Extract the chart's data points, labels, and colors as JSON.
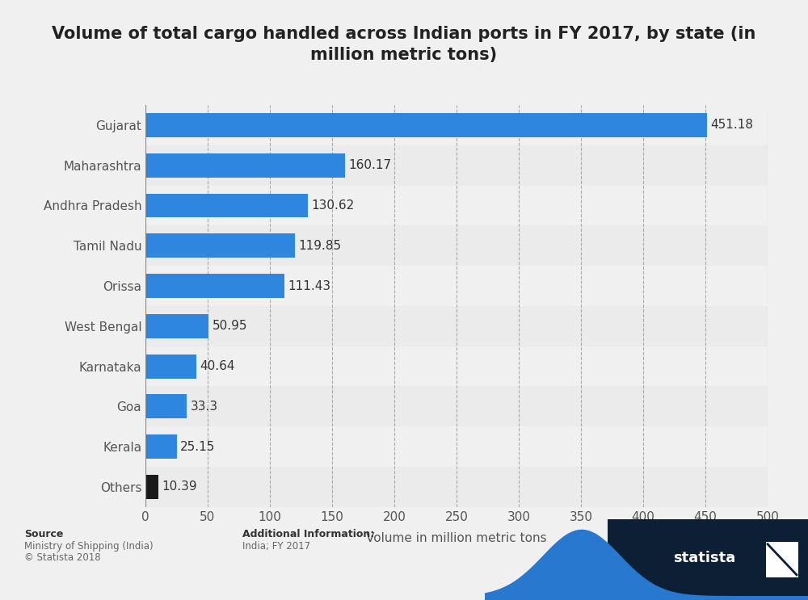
{
  "title": "Volume of total cargo handled across Indian ports in FY 2017, by state (in\nmillion metric tons)",
  "categories": [
    "Others",
    "Kerala",
    "Goa",
    "Karnataka",
    "West Bengal",
    "Orissa",
    "Tamil Nadu",
    "Andhra Pradesh",
    "Maharashtra",
    "Gujarat"
  ],
  "values": [
    10.39,
    25.15,
    33.3,
    40.64,
    50.95,
    111.43,
    119.85,
    130.62,
    160.17,
    451.18
  ],
  "bar_colors": [
    "#1a1a1a",
    "#2e86de",
    "#2e86de",
    "#2e86de",
    "#2e86de",
    "#2e86de",
    "#2e86de",
    "#2e86de",
    "#2e86de",
    "#2e86de"
  ],
  "xlabel": "Volume in million metric tons",
  "xlim": [
    0,
    500
  ],
  "xticks": [
    0,
    50,
    100,
    150,
    200,
    250,
    300,
    350,
    400,
    450,
    500
  ],
  "bg_color": "#f0f0f0",
  "plot_bg_color": "#f0f0f0",
  "title_fontsize": 15,
  "label_fontsize": 11,
  "tick_fontsize": 11,
  "value_fontsize": 11,
  "source_label": "Source",
  "source_line1": "Ministry of Shipping (India)",
  "source_line2": "© Statista 2018",
  "additional_label": "Additional Information:",
  "additional_line1": "India; FY 2017",
  "navy_color": "#0d1f35",
  "blue_wave_color": "#2878d0"
}
